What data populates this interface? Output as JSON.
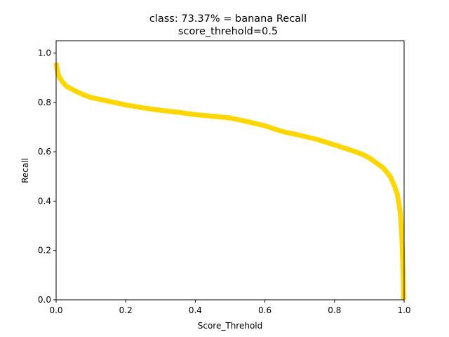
{
  "chart_data": {
    "type": "line",
    "title_line1": "class: 73.37% = banana Recall",
    "title_line2": "score_threhold=0.5",
    "xlabel": "Score_Threhold",
    "ylabel": "Recall",
    "xlim": [
      0.0,
      1.0
    ],
    "ylim": [
      0.0,
      1.05
    ],
    "xticks": [
      0.0,
      0.2,
      0.4,
      0.6,
      0.8,
      1.0
    ],
    "xtick_labels": [
      "0.0",
      "0.2",
      "0.4",
      "0.6",
      "0.8",
      "1.0"
    ],
    "yticks": [
      0.0,
      0.2,
      0.4,
      0.6,
      0.8,
      1.0
    ],
    "ytick_labels": [
      "0.0",
      "0.2",
      "0.4",
      "0.6",
      "0.8",
      "1.0"
    ],
    "grid": false,
    "series": [
      {
        "color": "#ffd700",
        "x": [
          0.0,
          0.002,
          0.005,
          0.01,
          0.02,
          0.03,
          0.05,
          0.08,
          0.1,
          0.15,
          0.2,
          0.25,
          0.3,
          0.35,
          0.4,
          0.45,
          0.5,
          0.55,
          0.6,
          0.65,
          0.7,
          0.75,
          0.8,
          0.85,
          0.88,
          0.9,
          0.92,
          0.94,
          0.96,
          0.97,
          0.98,
          0.985,
          0.99,
          0.993,
          0.995,
          0.997,
          0.998,
          0.999
        ],
        "y": [
          0.96,
          0.94,
          0.92,
          0.9,
          0.88,
          0.865,
          0.85,
          0.83,
          0.82,
          0.805,
          0.79,
          0.778,
          0.768,
          0.76,
          0.75,
          0.744,
          0.737,
          0.722,
          0.705,
          0.682,
          0.667,
          0.65,
          0.628,
          0.605,
          0.59,
          0.575,
          0.555,
          0.535,
          0.5,
          0.47,
          0.43,
          0.39,
          0.34,
          0.27,
          0.2,
          0.12,
          0.05,
          0.0
        ]
      }
    ]
  }
}
